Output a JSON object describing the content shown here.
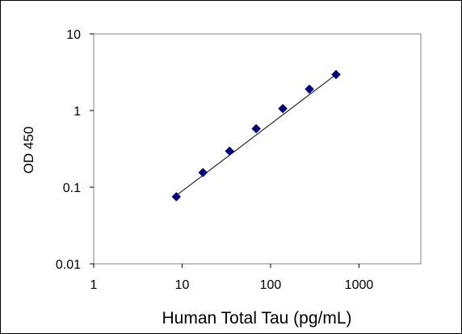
{
  "chart_data": {
    "type": "scatter",
    "title": "",
    "xlabel": "Human Total Tau (pg/mL)",
    "ylabel": "OD 450",
    "x_scale": "log",
    "y_scale": "log",
    "xlim": [
      1,
      5000
    ],
    "ylim": [
      0.01,
      10
    ],
    "x_ticks": [
      {
        "value": 1,
        "label": "1"
      },
      {
        "value": 10,
        "label": "10"
      },
      {
        "value": 100,
        "label": "100"
      },
      {
        "value": 1000,
        "label": "1000"
      }
    ],
    "y_ticks": [
      {
        "value": 10,
        "label": "10"
      },
      {
        "value": 1,
        "label": "1"
      },
      {
        "value": 0.1,
        "label": "0.1"
      },
      {
        "value": 0.01,
        "label": "0.01"
      }
    ],
    "grid": false,
    "legend": "none",
    "series": [
      {
        "x": [
          8.6,
          17.2,
          34.4,
          68.8,
          137.5,
          275,
          550
        ],
        "y": [
          0.075,
          0.155,
          0.295,
          0.58,
          1.06,
          1.9,
          2.95
        ],
        "marker": "diamond",
        "color": "#000080"
      }
    ],
    "fit_line": {
      "x": [
        8.6,
        550
      ],
      "y": [
        0.078,
        2.95
      ],
      "color": "#000000"
    }
  }
}
